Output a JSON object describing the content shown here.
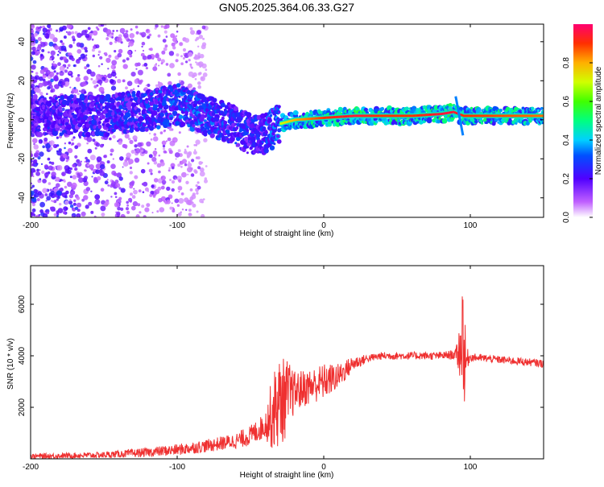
{
  "chart_data": [
    {
      "type": "heatmap",
      "title": "GN05.2025.364.06.33.G27",
      "xlabel": "Height of straight line (km)",
      "ylabel": "Frequency (Hz)",
      "xlim": [
        -200,
        150
      ],
      "ylim": [
        -50,
        49
      ],
      "xticks": [
        -200,
        -100,
        0,
        100
      ],
      "yticks": [
        -40,
        -20,
        0,
        20,
        40
      ],
      "description": "Spectral amplitude vs height: scattered low amplitude below -120 km, broad band near 0 Hz from -120 to -40 km drifting to about -10 Hz, narrow strong line near 2 Hz from -30 km upward, with a spike near 90 km.",
      "ridge": {
        "x": [
          -200,
          -150,
          -120,
          -100,
          -80,
          -60,
          -50,
          -40,
          -30,
          -20,
          0,
          20,
          40,
          60,
          80,
          88,
          95,
          100,
          150
        ],
        "y": [
          2,
          2,
          5,
          8,
          2,
          -3,
          -8,
          -7,
          -2,
          0,
          1,
          2,
          2,
          2,
          3,
          4,
          2,
          2,
          2
        ],
        "amp": [
          0.45,
          0.5,
          0.55,
          0.6,
          0.6,
          0.55,
          0.5,
          0.55,
          0.7,
          0.8,
          0.9,
          0.95,
          0.9,
          0.9,
          0.95,
          0.95,
          0.9,
          0.9,
          0.85
        ]
      },
      "colorbar": {
        "label": "Normalized spectral amplitude",
        "range": [
          0,
          1
        ],
        "ticks": [
          "0.0",
          "0.2",
          "0.4",
          "0.6",
          "0.8"
        ],
        "tick_values": [
          0,
          0.2,
          0.4,
          0.6,
          0.8
        ]
      }
    },
    {
      "type": "line",
      "xlabel": "Height of straight line (km)",
      "ylabel": "SNR (10 * v/v)",
      "xlim": [
        -200,
        150
      ],
      "ylim": [
        0,
        7500
      ],
      "xticks": [
        -200,
        -100,
        0,
        100
      ],
      "yticks": [
        2000,
        4000,
        6000
      ],
      "series": [
        {
          "name": "SNR",
          "color": "#ef3030",
          "x": [
            -200,
            -150,
            -120,
            -100,
            -80,
            -60,
            -50,
            -40,
            -35,
            -30,
            -25,
            -20,
            -10,
            0,
            10,
            20,
            30,
            40,
            60,
            80,
            90,
            94,
            95,
            96,
            98,
            100,
            120,
            150
          ],
          "y": [
            100,
            150,
            250,
            350,
            500,
            700,
            900,
            1300,
            1800,
            2200,
            2400,
            2600,
            2800,
            3000,
            3200,
            3700,
            3900,
            4000,
            4000,
            4000,
            4050,
            4300,
            5500,
            3500,
            3900,
            3950,
            3850,
            3700
          ],
          "noise": [
            100,
            120,
            180,
            220,
            250,
            300,
            400,
            500,
            1500,
            1800,
            1500,
            800,
            700,
            700,
            500,
            300,
            150,
            150,
            150,
            150,
            200,
            1500,
            2500,
            2000,
            400,
            150,
            150,
            150
          ]
        }
      ]
    }
  ]
}
